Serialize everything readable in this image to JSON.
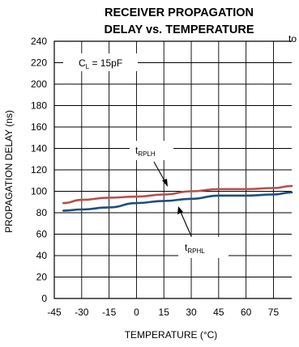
{
  "chart_data": {
    "type": "line",
    "title_line1": "RECEIVER PROPAGATION",
    "title_line2": "DELAY vs. TEMPERATURE",
    "corner_code": "to",
    "xlabel": "TEMPERATURE (°C)",
    "ylabel": "PROPAGATION DELAY (ns)",
    "xlim": [
      -45,
      85
    ],
    "ylim": [
      0,
      240
    ],
    "xticks": [
      "-45",
      "-30",
      "-15",
      "0",
      "15",
      "30",
      "45",
      "60",
      "75"
    ],
    "yticks": [
      "0",
      "20",
      "40",
      "60",
      "80",
      "100",
      "120",
      "140",
      "160",
      "180",
      "200",
      "220",
      "240"
    ],
    "grid": true,
    "annotations": {
      "condition_main": "C",
      "condition_sub": "L",
      "condition_rest": " = 15pF",
      "tplh_main": "t",
      "tplh_sub": "RPLH",
      "tphl_main": "t",
      "tphl_sub": "RPHL"
    },
    "series": [
      {
        "label_ref": "tplh",
        "color": "#b5504d",
        "x": [
          -40,
          -30,
          -15,
          0,
          15,
          30,
          45,
          60,
          75,
          85
        ],
        "y": [
          89,
          92,
          94,
          95,
          97,
          100,
          102,
          102,
          103,
          105
        ]
      },
      {
        "label_ref": "tphl",
        "color": "#1f4e7e",
        "x": [
          -40,
          -30,
          -15,
          0,
          15,
          30,
          45,
          60,
          75,
          85
        ],
        "y": [
          82,
          83,
          85,
          89,
          91,
          93,
          96,
          96,
          97,
          99
        ]
      }
    ]
  }
}
